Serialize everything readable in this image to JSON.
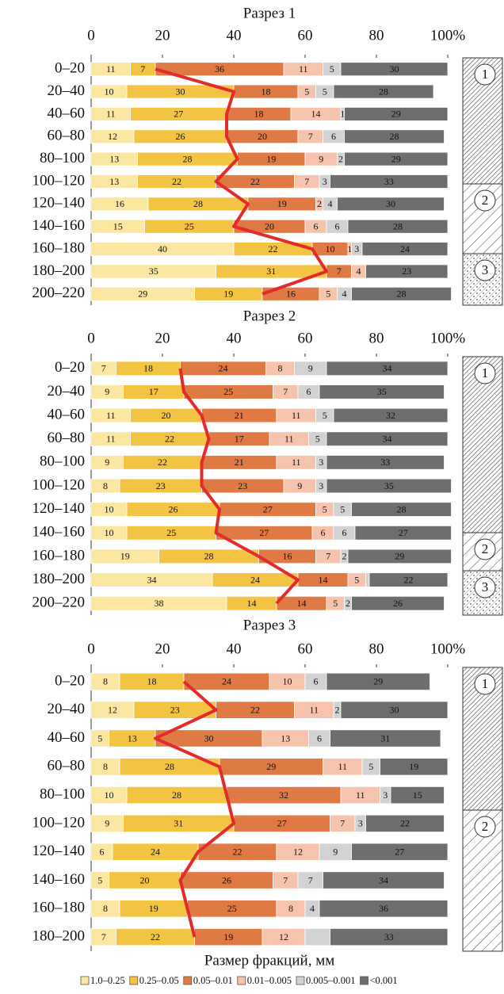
{
  "chart_data": [
    {
      "type": "stacked-bar-h",
      "title": "Разрез 1",
      "categories": [
        "0–20",
        "20–40",
        "40–60",
        "60–80",
        "80–100",
        "100–120",
        "120–140",
        "140–160",
        "160–180",
        "180–200",
        "200–220"
      ],
      "xlim": [
        0,
        100
      ],
      "xticks": [
        0,
        20,
        40,
        60,
        80,
        {
          "value": 100,
          "label": "100%"
        }
      ],
      "layers": [
        "1",
        "2",
        "3"
      ],
      "series": [
        {
          "values": [
            11,
            10,
            11,
            12,
            13,
            13,
            16,
            15,
            40,
            35,
            29
          ]
        },
        {
          "values": [
            7,
            30,
            27,
            26,
            28,
            22,
            28,
            25,
            22,
            31,
            19
          ]
        },
        {
          "values": [
            36,
            18,
            18,
            20,
            19,
            22,
            19,
            20,
            10,
            7,
            16
          ]
        },
        {
          "values": [
            11,
            5,
            14,
            7,
            9,
            7,
            2,
            6,
            1,
            4,
            5
          ]
        },
        {
          "values": [
            5,
            5,
            1,
            6,
            2,
            3,
            4,
            6,
            3,
            0,
            4
          ]
        },
        {
          "values": [
            30,
            28,
            29,
            28,
            29,
            33,
            30,
            28,
            24,
            23,
            28
          ]
        }
      ]
    },
    {
      "type": "stacked-bar-h",
      "title": "Разрез 2",
      "categories": [
        "0–20",
        "20–40",
        "40–60",
        "60–80",
        "80–100",
        "100–120",
        "120–140",
        "140–160",
        "160–180",
        "180–200",
        "200–220"
      ],
      "xlim": [
        0,
        100
      ],
      "xticks": [
        0,
        20,
        40,
        60,
        80,
        {
          "value": 100,
          "label": "100%"
        }
      ],
      "layers": [
        "1",
        "2",
        "3"
      ],
      "series": [
        {
          "values": [
            7,
            9,
            11,
            11,
            9,
            8,
            10,
            10,
            19,
            34,
            38
          ]
        },
        {
          "values": [
            18,
            17,
            20,
            22,
            22,
            23,
            26,
            25,
            28,
            24,
            14
          ]
        },
        {
          "values": [
            24,
            25,
            21,
            17,
            21,
            23,
            27,
            27,
            16,
            14,
            14
          ]
        },
        {
          "values": [
            8,
            7,
            11,
            11,
            11,
            9,
            5,
            6,
            7,
            5,
            5
          ]
        },
        {
          "values": [
            9,
            6,
            5,
            5,
            3,
            3,
            5,
            6,
            2,
            1,
            2
          ],
          "value_labels": [
            "9",
            "6",
            "5",
            "5",
            "3",
            "3",
            "5",
            "6",
            "2",
            null,
            "2"
          ]
        },
        {
          "values": [
            34,
            35,
            32,
            34,
            33,
            35,
            28,
            27,
            29,
            22,
            26
          ]
        }
      ]
    },
    {
      "type": "stacked-bar-h",
      "title": "Разрез 3",
      "categories": [
        "0–20",
        "20–40",
        "40–60",
        "60–80",
        "80–100",
        "100–120",
        "120–140",
        "140–160",
        "160–180",
        "180–200"
      ],
      "xlim": [
        0,
        100
      ],
      "xticks": [
        0,
        20,
        40,
        60,
        80,
        {
          "value": 100,
          "label": "100%"
        }
      ],
      "layers": [
        "1",
        "2"
      ],
      "series": [
        {
          "values": [
            8,
            12,
            5,
            8,
            10,
            9,
            6,
            5,
            8,
            7
          ]
        },
        {
          "values": [
            18,
            23,
            13,
            28,
            28,
            31,
            24,
            20,
            19,
            22
          ]
        },
        {
          "values": [
            24,
            22,
            30,
            29,
            32,
            27,
            22,
            26,
            25,
            19
          ]
        },
        {
          "values": [
            10,
            11,
            13,
            11,
            11,
            7,
            12,
            7,
            8,
            12
          ]
        },
        {
          "values": [
            6,
            2,
            6,
            5,
            3,
            3,
            9,
            7,
            4,
            7
          ],
          "value_labels": [
            "6",
            "2",
            "6",
            "5",
            "3",
            "3",
            "9",
            "7",
            "4",
            null
          ]
        },
        {
          "values": [
            29,
            30,
            31,
            19,
            15,
            22,
            27,
            34,
            36,
            33
          ]
        }
      ]
    }
  ],
  "legend": {
    "title": "Размер фракций, мм",
    "items": [
      {
        "name": "1.0–0.25",
        "color": "#fbe7a1"
      },
      {
        "name": "0.25–0.05",
        "color": "#f3c443"
      },
      {
        "name": "0.05–0.01",
        "color": "#df7a44"
      },
      {
        "name": "0.01–0.005",
        "color": "#f6c4ad"
      },
      {
        "name": "0.005–0.001",
        "color": "#d2d2d2"
      },
      {
        "name": "<0.001",
        "color": "#6e6e6e"
      }
    ]
  },
  "line_color": "#e32b2b"
}
